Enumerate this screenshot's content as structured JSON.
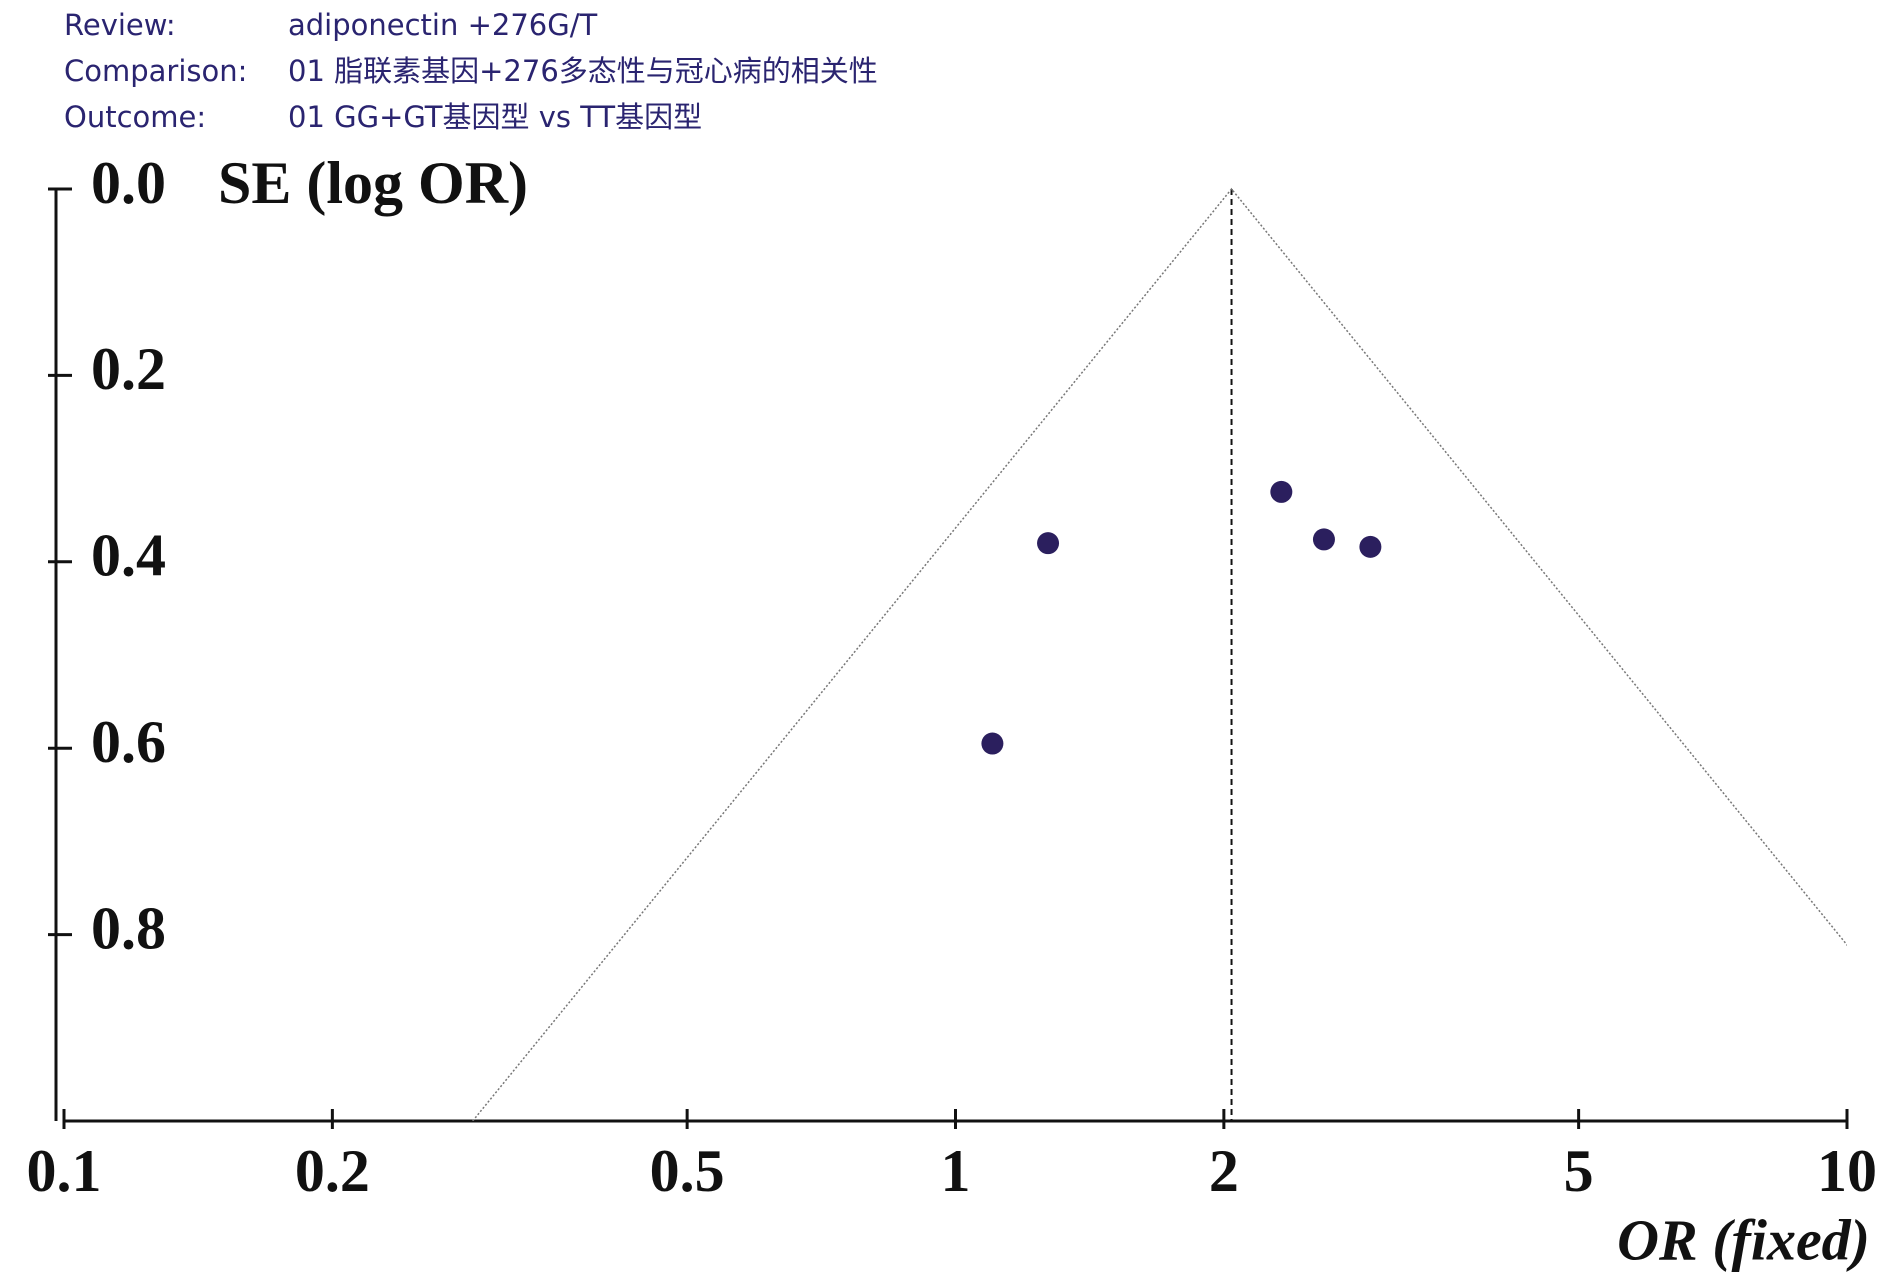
{
  "header": {
    "rows": [
      [
        "Review:",
        "adiponectin +276G/T"
      ],
      [
        "Comparison:",
        "01 脂联素基因+276多态性与冠心病的相关性"
      ],
      [
        "Outcome:",
        "01 GG+GT基因型  vs  TT基因型"
      ]
    ]
  },
  "chart_data": {
    "type": "scatter",
    "y_label": "SE (log OR)",
    "x_label": "OR (fixed)",
    "x_log": true,
    "y_reversed": true,
    "xlim": [
      0.1,
      10
    ],
    "xticks": [
      0.1,
      0.2,
      0.5,
      1,
      2,
      5,
      10
    ],
    "ylim": [
      0,
      1
    ],
    "yticks": [
      {
        "value": 0,
        "label": "0.0"
      },
      0.2,
      0.4,
      0.6,
      0.8
    ],
    "reference_line": 2.04,
    "color": "#2b1f5e",
    "x": [
      1.27,
      1.1,
      2.32,
      2.59,
      2.92
    ],
    "values": [
      0.38,
      0.595,
      0.325,
      0.376,
      0.384
    ]
  }
}
